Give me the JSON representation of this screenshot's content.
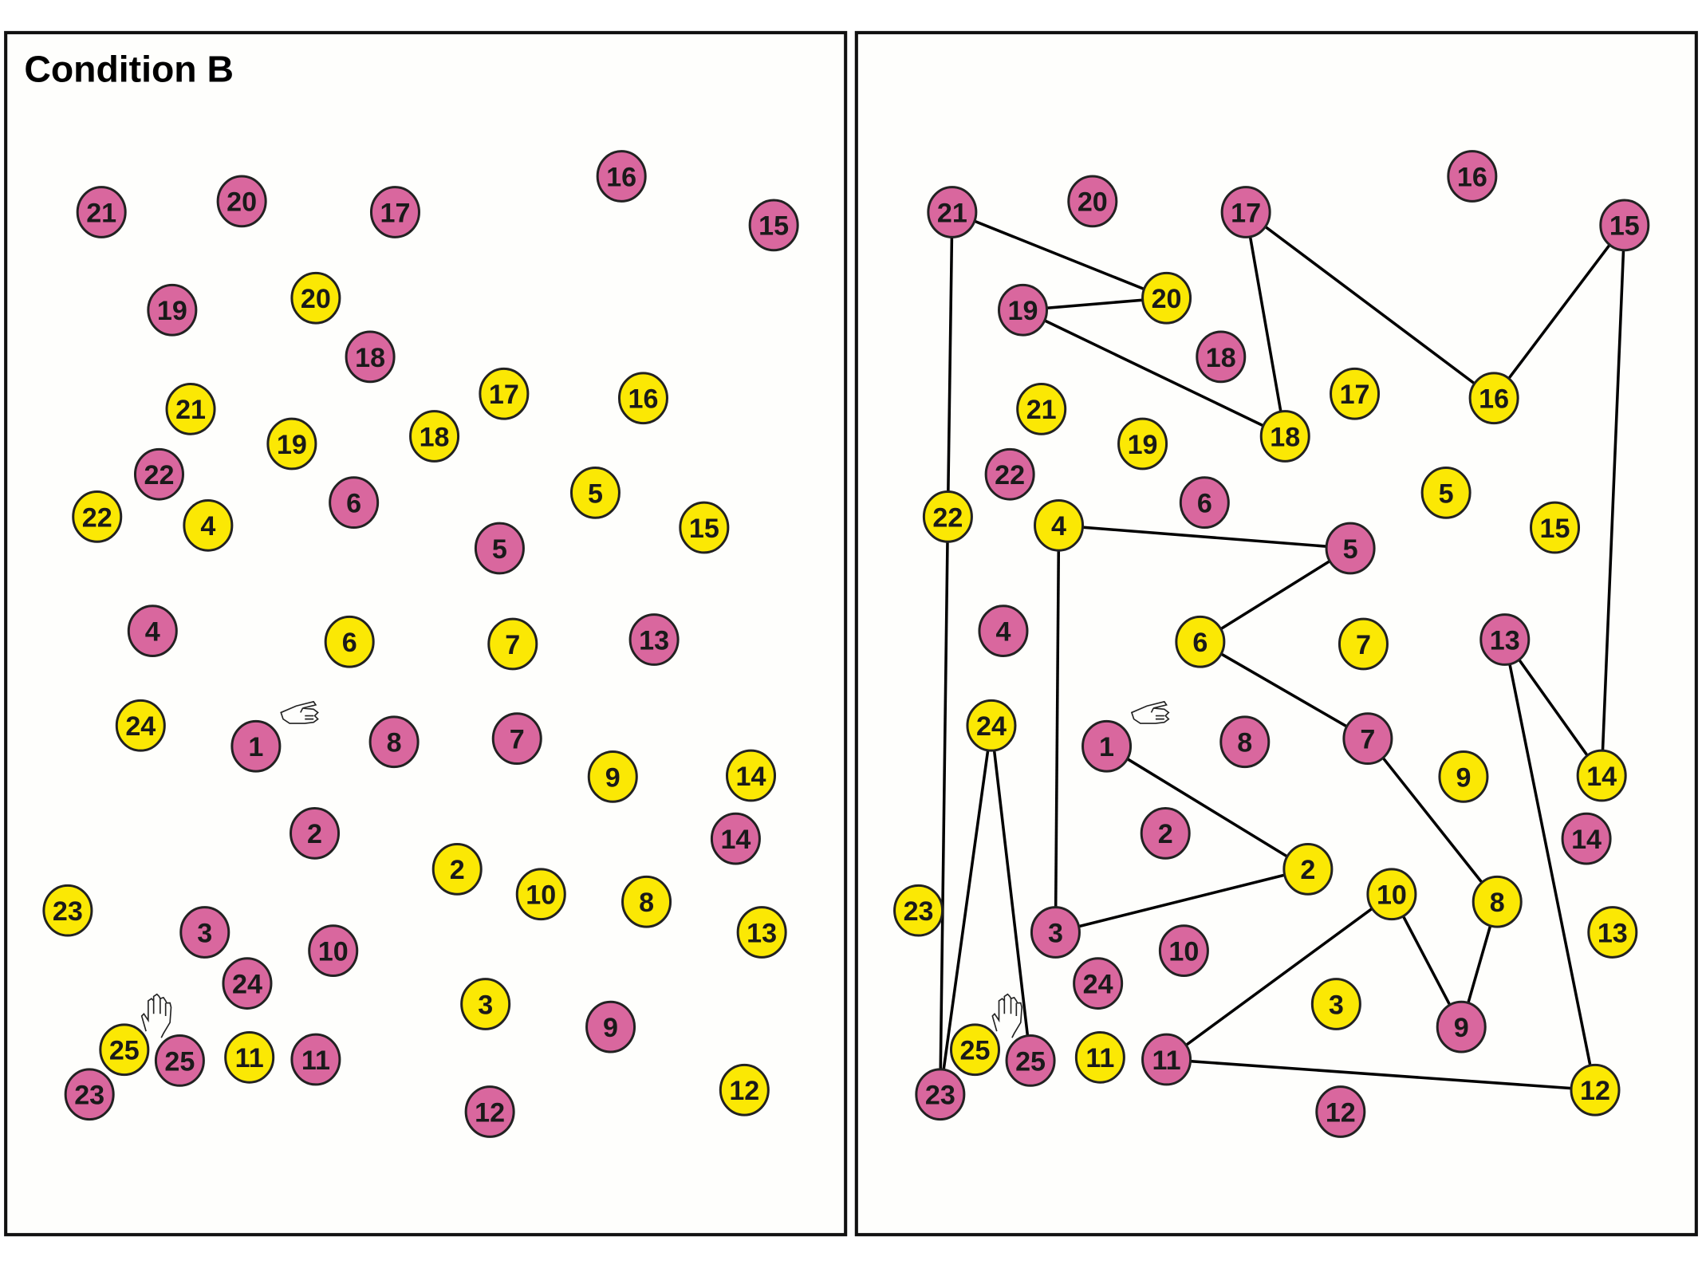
{
  "title": "Condition B",
  "colors": {
    "pink": "#d9679e",
    "yellow": "#fbe804",
    "border": "#111111",
    "line": "#000000"
  },
  "icons": {
    "start": "pointing-hand-icon",
    "end": "raised-hand-icon"
  },
  "nodes": [
    {
      "id": "P1",
      "label": "1",
      "color": "pink"
    },
    {
      "id": "P2",
      "label": "2",
      "color": "pink"
    },
    {
      "id": "P3",
      "label": "3",
      "color": "pink"
    },
    {
      "id": "P4",
      "label": "4",
      "color": "pink"
    },
    {
      "id": "P5",
      "label": "5",
      "color": "pink"
    },
    {
      "id": "P6",
      "label": "6",
      "color": "pink"
    },
    {
      "id": "P7",
      "label": "7",
      "color": "pink"
    },
    {
      "id": "P8",
      "label": "8",
      "color": "pink"
    },
    {
      "id": "P9",
      "label": "9",
      "color": "pink"
    },
    {
      "id": "P10",
      "label": "10",
      "color": "pink"
    },
    {
      "id": "P11",
      "label": "11",
      "color": "pink"
    },
    {
      "id": "P12",
      "label": "12",
      "color": "pink"
    },
    {
      "id": "P13",
      "label": "13",
      "color": "pink"
    },
    {
      "id": "P14",
      "label": "14",
      "color": "pink"
    },
    {
      "id": "P15",
      "label": "15",
      "color": "pink"
    },
    {
      "id": "P16",
      "label": "16",
      "color": "pink"
    },
    {
      "id": "P17",
      "label": "17",
      "color": "pink"
    },
    {
      "id": "P18",
      "label": "18",
      "color": "pink"
    },
    {
      "id": "P19",
      "label": "19",
      "color": "pink"
    },
    {
      "id": "P20",
      "label": "20",
      "color": "pink"
    },
    {
      "id": "P21",
      "label": "21",
      "color": "pink"
    },
    {
      "id": "P22",
      "label": "22",
      "color": "pink"
    },
    {
      "id": "P23",
      "label": "23",
      "color": "pink"
    },
    {
      "id": "P24",
      "label": "24",
      "color": "pink"
    },
    {
      "id": "P25",
      "label": "25",
      "color": "pink"
    },
    {
      "id": "Y2",
      "label": "2",
      "color": "yellow"
    },
    {
      "id": "Y3",
      "label": "3",
      "color": "yellow"
    },
    {
      "id": "Y4",
      "label": "4",
      "color": "yellow"
    },
    {
      "id": "Y5",
      "label": "5",
      "color": "yellow"
    },
    {
      "id": "Y6",
      "label": "6",
      "color": "yellow"
    },
    {
      "id": "Y7",
      "label": "7",
      "color": "yellow"
    },
    {
      "id": "Y8",
      "label": "8",
      "color": "yellow"
    },
    {
      "id": "Y9",
      "label": "9",
      "color": "yellow"
    },
    {
      "id": "Y10",
      "label": "10",
      "color": "yellow"
    },
    {
      "id": "Y11",
      "label": "11",
      "color": "yellow"
    },
    {
      "id": "Y12",
      "label": "12",
      "color": "yellow"
    },
    {
      "id": "Y13",
      "label": "13",
      "color": "yellow"
    },
    {
      "id": "Y14",
      "label": "14",
      "color": "yellow"
    },
    {
      "id": "Y15",
      "label": "15",
      "color": "yellow"
    },
    {
      "id": "Y16",
      "label": "16",
      "color": "yellow"
    },
    {
      "id": "Y17",
      "label": "17",
      "color": "yellow"
    },
    {
      "id": "Y18",
      "label": "18",
      "color": "yellow"
    },
    {
      "id": "Y19",
      "label": "19",
      "color": "yellow"
    },
    {
      "id": "Y20",
      "label": "20",
      "color": "yellow"
    },
    {
      "id": "Y21",
      "label": "21",
      "color": "yellow"
    },
    {
      "id": "Y22",
      "label": "22",
      "color": "yellow"
    },
    {
      "id": "Y23",
      "label": "23",
      "color": "yellow"
    },
    {
      "id": "Y24",
      "label": "24",
      "color": "yellow"
    },
    {
      "id": "Y25",
      "label": "25",
      "color": "yellow"
    }
  ],
  "trail_sequence": [
    "P1",
    "Y2",
    "P3",
    "Y4",
    "P5",
    "Y6",
    "P7",
    "Y8",
    "P9",
    "Y10",
    "P11",
    "Y12",
    "P13",
    "Y14",
    "P15",
    "Y16",
    "P17",
    "Y18",
    "P19",
    "Y20",
    "P21",
    "Y22",
    "P23",
    "Y24",
    "P25"
  ]
}
